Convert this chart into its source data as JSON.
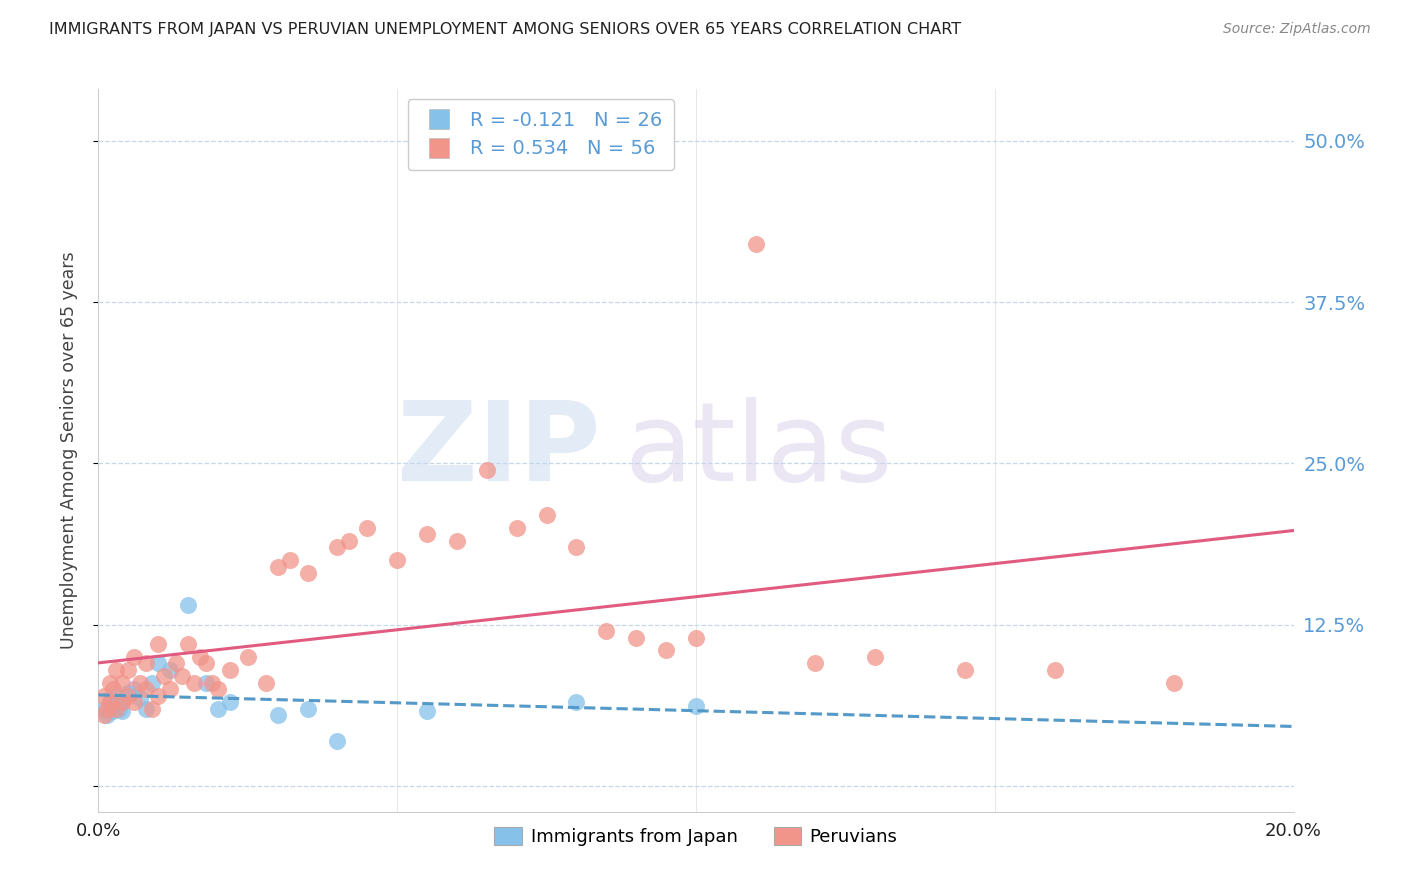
{
  "title": "IMMIGRANTS FROM JAPAN VS PERUVIAN UNEMPLOYMENT AMONG SENIORS OVER 65 YEARS CORRELATION CHART",
  "source": "Source: ZipAtlas.com",
  "ylabel": "Unemployment Among Seniors over 65 years",
  "ytick_values": [
    0.0,
    0.125,
    0.25,
    0.375,
    0.5
  ],
  "ytick_labels": [
    "",
    "12.5%",
    "25.0%",
    "37.5%",
    "50.0%"
  ],
  "xlim": [
    0.0,
    0.2
  ],
  "ylim": [
    -0.02,
    0.54
  ],
  "legend_r_japan": "-0.121",
  "legend_n_japan": "26",
  "legend_r_peru": "0.534",
  "legend_n_peru": "56",
  "japan_color": "#85c1e9",
  "peru_color": "#f1948a",
  "japan_line_color": "#5499c7",
  "peru_line_color": "#e05b7f",
  "japan_scatter_x": [
    0.001,
    0.0015,
    0.002,
    0.0025,
    0.003,
    0.003,
    0.0035,
    0.004,
    0.004,
    0.005,
    0.006,
    0.007,
    0.008,
    0.009,
    0.01,
    0.012,
    0.015,
    0.018,
    0.02,
    0.022,
    0.03,
    0.035,
    0.04,
    0.055,
    0.08,
    0.1
  ],
  "japan_scatter_y": [
    0.06,
    0.055,
    0.065,
    0.058,
    0.062,
    0.07,
    0.06,
    0.065,
    0.058,
    0.072,
    0.075,
    0.068,
    0.06,
    0.08,
    0.095,
    0.09,
    0.14,
    0.08,
    0.06,
    0.065,
    0.055,
    0.06,
    0.035,
    0.058,
    0.065,
    0.062
  ],
  "peru_scatter_x": [
    0.001,
    0.001,
    0.0015,
    0.002,
    0.002,
    0.0025,
    0.003,
    0.003,
    0.004,
    0.004,
    0.005,
    0.005,
    0.006,
    0.006,
    0.007,
    0.008,
    0.008,
    0.009,
    0.01,
    0.01,
    0.011,
    0.012,
    0.013,
    0.014,
    0.015,
    0.016,
    0.017,
    0.018,
    0.019,
    0.02,
    0.022,
    0.025,
    0.028,
    0.03,
    0.032,
    0.035,
    0.04,
    0.042,
    0.045,
    0.05,
    0.055,
    0.06,
    0.065,
    0.07,
    0.075,
    0.08,
    0.085,
    0.09,
    0.095,
    0.1,
    0.11,
    0.12,
    0.13,
    0.145,
    0.16,
    0.18
  ],
  "peru_scatter_y": [
    0.055,
    0.07,
    0.06,
    0.065,
    0.08,
    0.075,
    0.06,
    0.09,
    0.065,
    0.08,
    0.07,
    0.09,
    0.065,
    0.1,
    0.08,
    0.075,
    0.095,
    0.06,
    0.07,
    0.11,
    0.085,
    0.075,
    0.095,
    0.085,
    0.11,
    0.08,
    0.1,
    0.095,
    0.08,
    0.075,
    0.09,
    0.1,
    0.08,
    0.17,
    0.175,
    0.165,
    0.185,
    0.19,
    0.2,
    0.175,
    0.195,
    0.19,
    0.245,
    0.2,
    0.21,
    0.185,
    0.12,
    0.115,
    0.105,
    0.115,
    0.42,
    0.095,
    0.1,
    0.09,
    0.09,
    0.08
  ]
}
